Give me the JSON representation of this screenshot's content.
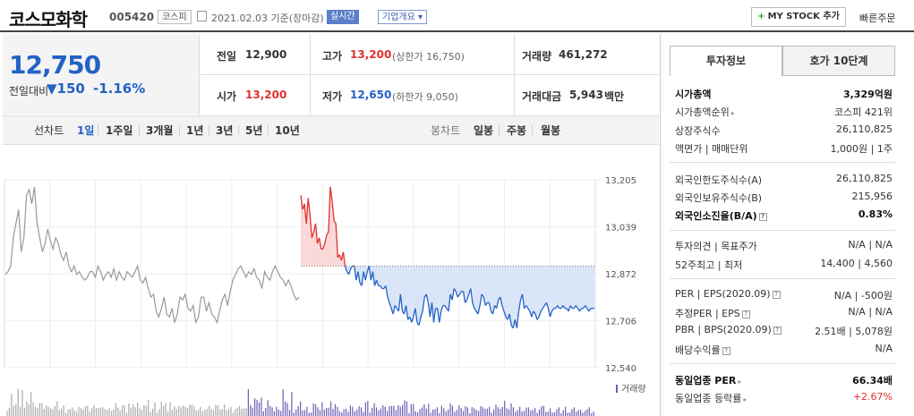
{
  "header": {
    "company_name": "코스모화학",
    "company_code": "005420",
    "market": "코스피",
    "date_text": "2021.02.03  기준(장마감)",
    "live_label": "실시간",
    "corp_label": "기업개요 ▾",
    "mystock_label": "MY STOCK 추가",
    "quick_order": "빠른주문"
  },
  "price": {
    "current": "12,750",
    "change_label": "전일대비",
    "change_value": "▼150",
    "change_rate": "-1.16%"
  },
  "quote": {
    "prev_label": "전일",
    "prev_value": "12,900",
    "open_label": "시가",
    "open_value": "13,200",
    "high_label": "고가",
    "high_value": "13,200",
    "high_limit": "(상한가 16,750)",
    "low_label": "저가",
    "low_value": "12,650",
    "low_limit": "(하한가 9,050)",
    "volume_label": "거래량",
    "volume_value": "461,272",
    "amount_label": "거래대금",
    "amount_value": "5,943",
    "amount_unit": "백만"
  },
  "periods": {
    "line_chart_label": "선차트",
    "line_items": [
      "1일",
      "1주일",
      "3개월",
      "1년",
      "3년",
      "5년",
      "10년"
    ],
    "active": "1일",
    "candle_label": "봉차트",
    "candle_items": [
      "일봉",
      "주봉",
      "월봉"
    ]
  },
  "tabs": [
    "투자정보",
    "호가 10단계"
  ],
  "invest_info": {
    "market_cap_label": "시가총액",
    "market_cap_value": "3,329억원",
    "rank_label": "시가총액순위",
    "rank_value": "코스피 421위",
    "shares_label": "상장주식수",
    "shares_value": "26,110,825",
    "par_label": "액면가 | 매매단위",
    "par_value": "1,000원 | 1주",
    "foreign_limit_label": "외국인한도주식수(A)",
    "foreign_limit_value": "26,110,825",
    "foreign_hold_label": "외국인보유주식수(B)",
    "foreign_hold_value": "215,956",
    "foreign_ratio_label": "외국인소진율(B/A)",
    "foreign_ratio_value": "0.83%",
    "opinion_label": "투자의견 | 목표주가",
    "opinion_value": "N/A | N/A",
    "w52_label": "52주최고 | 최저",
    "w52_value": "14,400 | 4,560",
    "per_label": "PER | EPS(2020.09)",
    "per_value": "N/A | -500원",
    "est_per_label": "추정PER | EPS",
    "est_per_value": "N/A | N/A",
    "pbr_label": "PBR | BPS(2020.09)",
    "pbr_value": "2.51배 | 5,078원",
    "div_label": "배당수익률",
    "div_value": "N/A",
    "ind_per_label": "동일업종 PER",
    "ind_per_value": "66.34배",
    "ind_rate_label": "동일업종 등락률",
    "ind_rate_value": "+2.67%"
  },
  "colors": {
    "up": "#e03131",
    "down": "#2362c5",
    "prev_line": "#999999",
    "volume": "#6b5fb5"
  },
  "chart_data": {
    "type": "line",
    "title": "",
    "reference_price": 12900,
    "ylim": [
      12540,
      13205
    ],
    "y_ticks": [
      13205,
      13039,
      12872,
      12706,
      12540
    ],
    "volume_label": "거래량",
    "series": [
      {
        "values": [
          12870,
          12880,
          12900,
          13000,
          13050,
          13100,
          12950,
          13000,
          13150,
          13170,
          13120,
          13180,
          13050,
          13000,
          12950,
          12980,
          13030,
          12990,
          12960,
          13000,
          12980,
          12940,
          12920,
          12950,
          12900,
          12880,
          12900,
          12870,
          12880,
          12860,
          12850,
          12860,
          12880,
          12880,
          12860,
          12900,
          12880,
          12850,
          12870,
          12880,
          12860,
          12890,
          12850,
          12880,
          12860,
          12850,
          12880,
          12870,
          12860,
          12880,
          12900,
          12850,
          12840,
          12860,
          12820,
          12790,
          12800,
          12740,
          12720,
          12750,
          12790,
          12730,
          12720,
          12750,
          12700,
          12730,
          12790,
          12780,
          12800,
          12750,
          12740,
          12760,
          12700,
          12720,
          12790,
          12790,
          12740,
          12770,
          12730,
          12720,
          12700,
          12740,
          12780,
          12800,
          12760,
          12810,
          12850,
          12870,
          12890,
          12900,
          12880,
          12860,
          12880,
          12870,
          12890,
          12860,
          12850,
          12820,
          12880,
          12860,
          12850,
          12880,
          12900,
          12880,
          12860,
          12850,
          12830,
          12850,
          12830,
          12800,
          12780,
          12790
        ]
      },
      {
        "values": [
          13150,
          13100,
          13120,
          13050,
          13140,
          13080,
          13000,
          13020,
          13050,
          12980,
          13000,
          12960,
          12960,
          12980,
          13010,
          13020,
          13180,
          13130,
          13060,
          13050,
          12930,
          12940,
          12920,
          12950,
          12900,
          12880,
          12870,
          12890,
          12900,
          12900,
          12850,
          12880,
          12840,
          12830,
          12880,
          12850,
          12880,
          12900,
          12850,
          12880,
          12830,
          12850,
          12830,
          12830,
          12820,
          12820,
          12830,
          12790,
          12770,
          12750,
          12730,
          12760,
          12750,
          12740,
          12800,
          12740,
          12730,
          12760,
          12710,
          12720,
          12700,
          12720,
          12750,
          12700,
          12690,
          12720,
          12740,
          12790,
          12800,
          12770,
          12720,
          12770,
          12700,
          12750,
          12750,
          12700,
          12740,
          12760,
          12760,
          12750,
          12740,
          12800,
          12780,
          12820,
          12810,
          12790,
          12800,
          12810,
          12810,
          12770,
          12780,
          12800,
          12820,
          12770,
          12750,
          12740,
          12730,
          12760,
          12800,
          12790,
          12760,
          12770,
          12770,
          12740,
          12730,
          12760,
          12750,
          12780,
          12790,
          12760,
          12740,
          12720,
          12710,
          12730,
          12690,
          12680,
          12710,
          12680,
          12740,
          12780,
          12800,
          12750,
          12760,
          12750,
          12740,
          12720,
          12740,
          12730,
          12710,
          12720,
          12740,
          12750,
          12760,
          12770,
          12750,
          12720,
          12740,
          12750,
          12750,
          12760,
          12750,
          12750,
          12760,
          12750,
          12750,
          12740,
          12760,
          12750,
          12750,
          12760,
          12750,
          12740,
          12750,
          12750,
          12760,
          12750,
          12740,
          12750,
          12750,
          12750
        ]
      }
    ]
  }
}
